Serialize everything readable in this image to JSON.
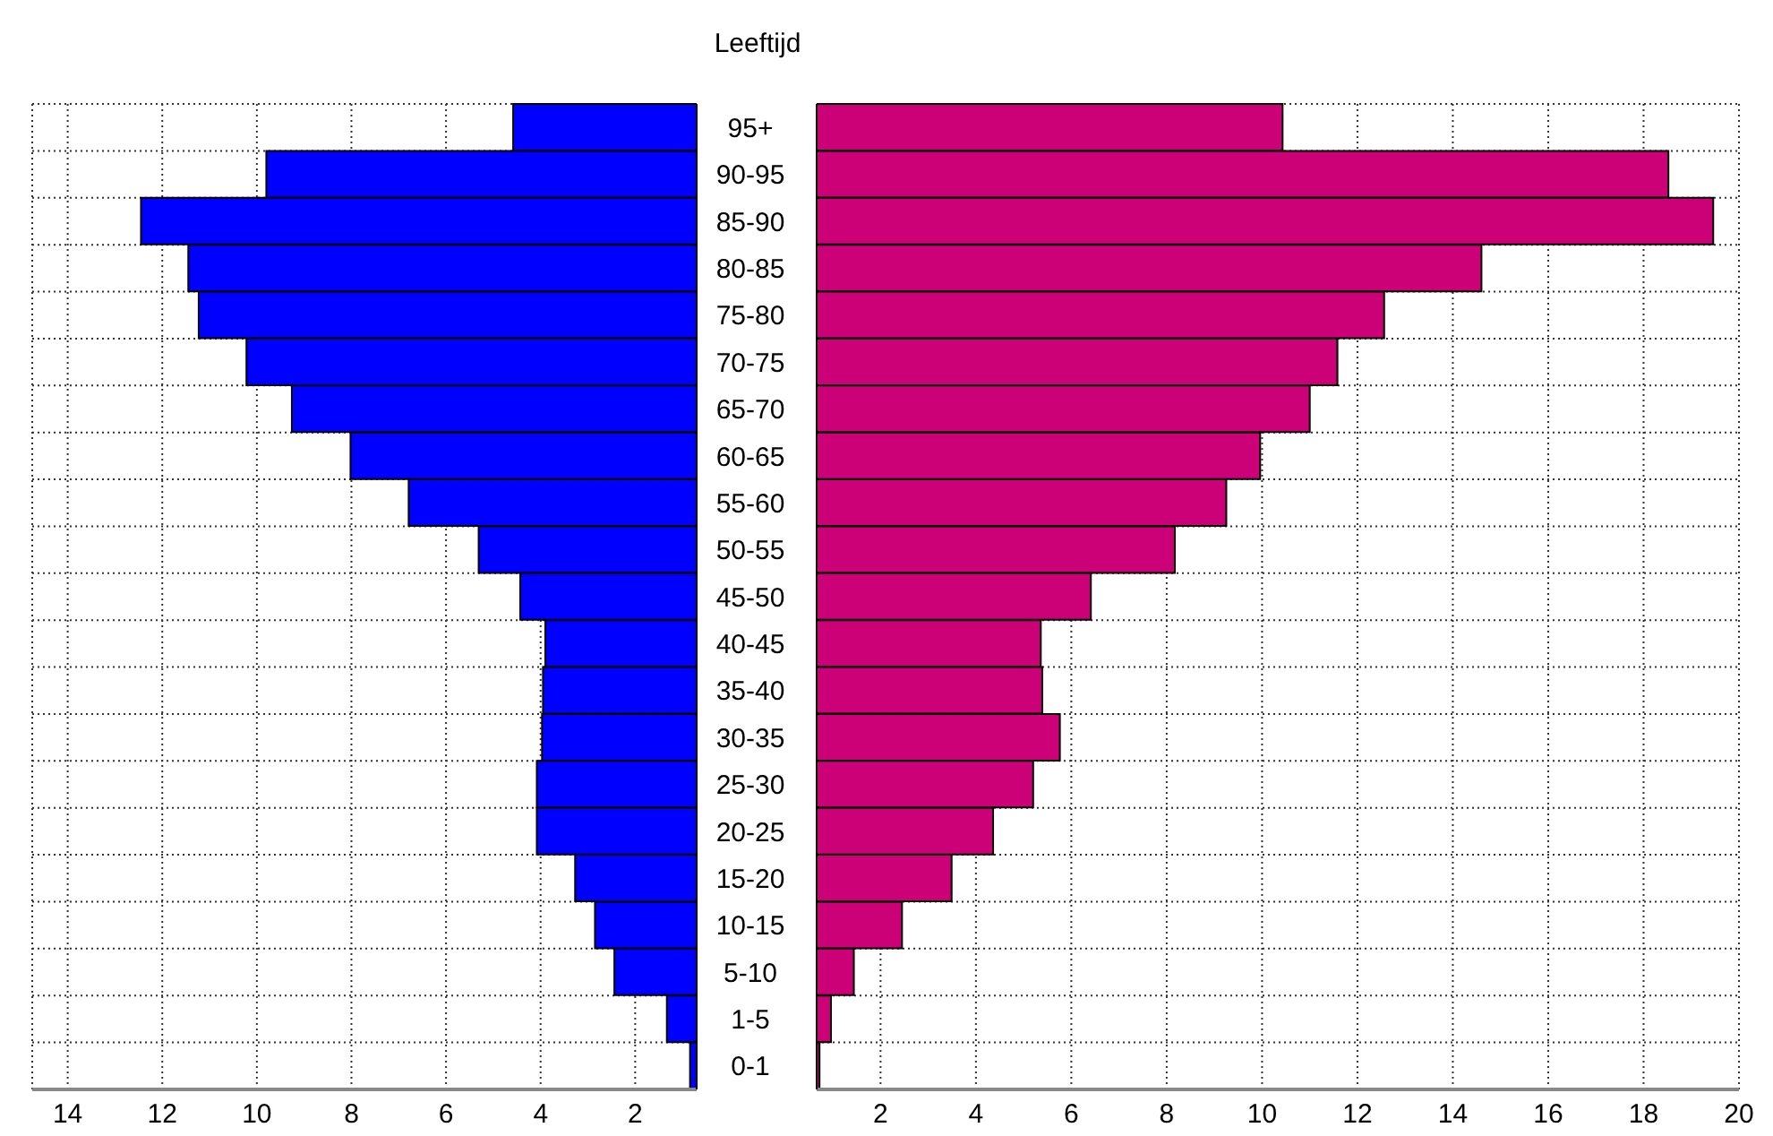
{
  "chart_data": [
    {
      "type": "bar",
      "orientation": "horizontal",
      "categories": [
        null,
        null,
        null,
        null,
        null,
        null,
        null,
        null,
        null,
        null,
        null,
        null,
        null,
        null,
        null,
        null,
        null,
        null,
        null,
        null,
        null
      ],
      "series": [
        {
          "color": "#0000ff",
          "values": [
            4.58,
            9.8,
            12.45,
            11.45,
            11.23,
            10.22,
            9.26,
            8.02,
            6.79,
            5.31,
            4.43,
            3.9,
            3.95,
            3.97,
            4.08,
            4.08,
            3.27,
            2.85,
            2.44,
            1.33,
            0.84
          ]
        }
      ],
      "xlim": [
        14.75,
        0.7
      ],
      "xticks": [
        14,
        12,
        10,
        8,
        6,
        4,
        2
      ],
      "grid": true,
      "tick_labels": "x"
    },
    {
      "type": "bar",
      "orientation": "horizontal",
      "ylabel": "Leeftijd",
      "categories": [
        "95+",
        "90-95",
        "85-90",
        "80-85",
        "75-80",
        "70-75",
        "65-70",
        "60-65",
        "55-60",
        "50-55",
        "45-50",
        "40-45",
        "35-40",
        "30-35",
        "25-30",
        "20-25",
        "15-20",
        "10-15",
        "5-10",
        "1-5",
        "0-1"
      ],
      "series": [
        {
          "color": "#cc0077",
          "values": [
            10.43,
            18.52,
            19.46,
            14.6,
            12.56,
            11.58,
            11.0,
            9.96,
            9.25,
            8.17,
            6.41,
            5.36,
            5.39,
            5.76,
            5.2,
            4.36,
            3.49,
            2.45,
            1.44,
            0.96,
            0.72
          ]
        }
      ],
      "xlim": [
        0.66,
        20
      ],
      "xticks": [
        2,
        4,
        6,
        8,
        10,
        12,
        14,
        16,
        18,
        20
      ],
      "grid": true
    }
  ]
}
